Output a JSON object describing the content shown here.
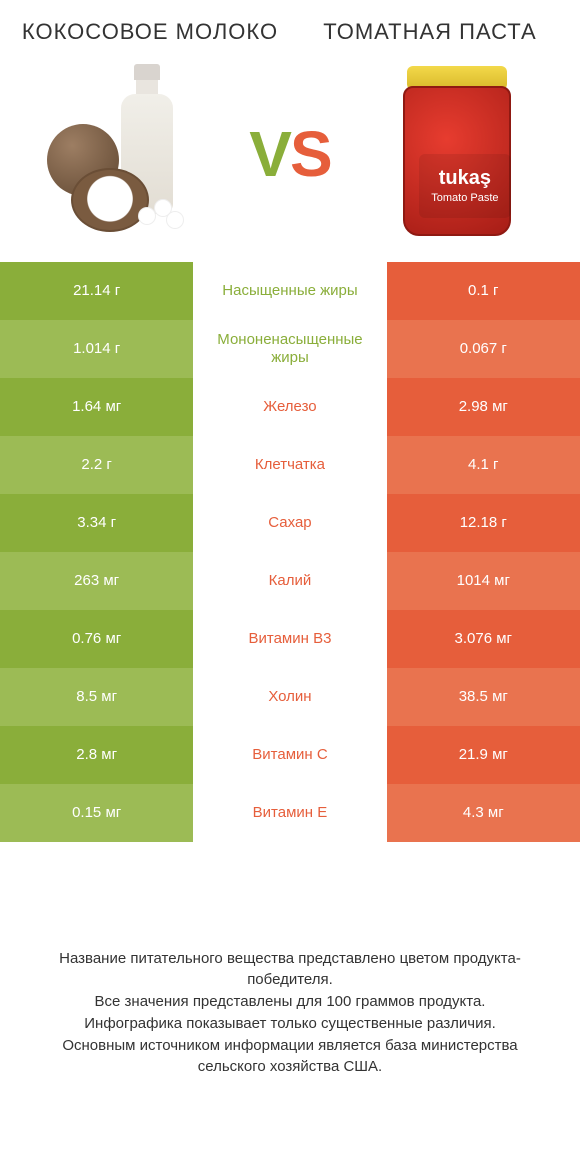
{
  "header": {
    "left_title": "КОКОСОВОЕ МОЛОКО",
    "right_title": "ТОМАТНАЯ ПАСТА",
    "vs_v": "V",
    "vs_s": "S"
  },
  "jar": {
    "brand": "tukaş",
    "sub": "Tomato Paste"
  },
  "colors": {
    "left_main": "#8aae3a",
    "left_alt": "#9cbb55",
    "right_main": "#e65e3b",
    "right_alt": "#e9734f",
    "background": "#ffffff",
    "text": "#333333"
  },
  "table": {
    "rows": [
      {
        "left": "21.14 г",
        "label": "Насыщенные жиры",
        "right": "0.1 г",
        "winner": "left"
      },
      {
        "left": "1.014 г",
        "label": "Мононенасыщенные жиры",
        "right": "0.067 г",
        "winner": "left"
      },
      {
        "left": "1.64 мг",
        "label": "Железо",
        "right": "2.98 мг",
        "winner": "right"
      },
      {
        "left": "2.2 г",
        "label": "Клетчатка",
        "right": "4.1 г",
        "winner": "right"
      },
      {
        "left": "3.34 г",
        "label": "Сахар",
        "right": "12.18 г",
        "winner": "right"
      },
      {
        "left": "263 мг",
        "label": "Калий",
        "right": "1014 мг",
        "winner": "right"
      },
      {
        "left": "0.76 мг",
        "label": "Витамин B3",
        "right": "3.076 мг",
        "winner": "right"
      },
      {
        "left": "8.5 мг",
        "label": "Холин",
        "right": "38.5 мг",
        "winner": "right"
      },
      {
        "left": "2.8 мг",
        "label": "Витамин C",
        "right": "21.9 мг",
        "winner": "right"
      },
      {
        "left": "0.15 мг",
        "label": "Витамин E",
        "right": "4.3 мг",
        "winner": "right"
      }
    ]
  },
  "footer": {
    "text": "Название питательного вещества представлено цветом продукта-победителя.\nВсе значения представлены для 100 граммов продукта.\nИнфографика показывает только существенные различия.\nОсновным источником информации является база министерства сельского хозяйства США."
  }
}
